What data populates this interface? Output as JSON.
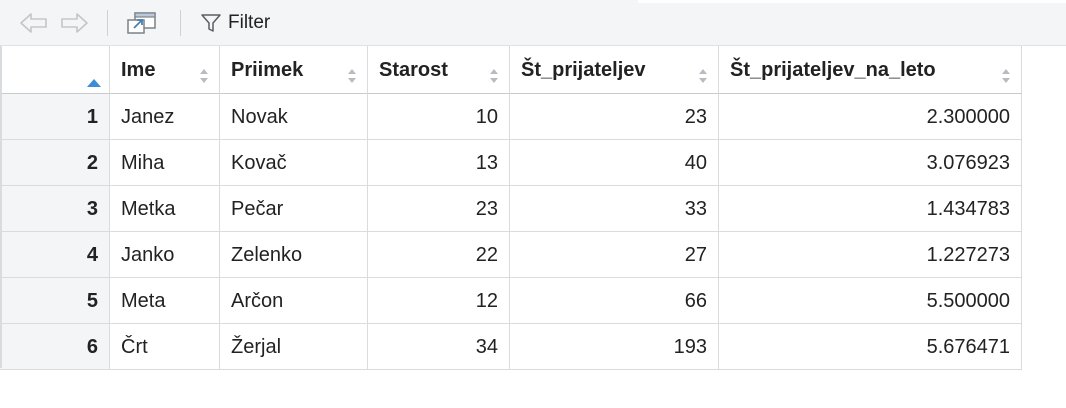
{
  "toolbar": {
    "back_icon": "back-arrow-icon",
    "forward_icon": "forward-arrow-icon",
    "popout_icon": "popout-window-icon",
    "filter_icon": "funnel-icon",
    "filter_label": "Filter"
  },
  "table": {
    "index_sort": "ascending",
    "columns": [
      "Ime",
      "Priimek",
      "Starost",
      "Št_prijateljev",
      "Št_prijateljev_na_leto"
    ],
    "rows": [
      {
        "idx": "1",
        "cells": [
          "Janez",
          "Novak",
          "10",
          "23",
          "2.300000"
        ]
      },
      {
        "idx": "2",
        "cells": [
          "Miha",
          "Kovač",
          "13",
          "40",
          "3.076923"
        ]
      },
      {
        "idx": "3",
        "cells": [
          "Metka",
          "Pečar",
          "23",
          "33",
          "1.434783"
        ]
      },
      {
        "idx": "4",
        "cells": [
          "Janko",
          "Zelenko",
          "22",
          "27",
          "1.227273"
        ]
      },
      {
        "idx": "5",
        "cells": [
          "Meta",
          "Arčon",
          "12",
          "66",
          "5.500000"
        ]
      },
      {
        "idx": "6",
        "cells": [
          "Črt",
          "Žerjal",
          "34",
          "193",
          "5.676471"
        ]
      }
    ]
  },
  "colors": {
    "sort_active": "#3c8dd6",
    "sort_inactive": "#b8bcc0",
    "toolbar_bg": "#f4f5f6"
  }
}
